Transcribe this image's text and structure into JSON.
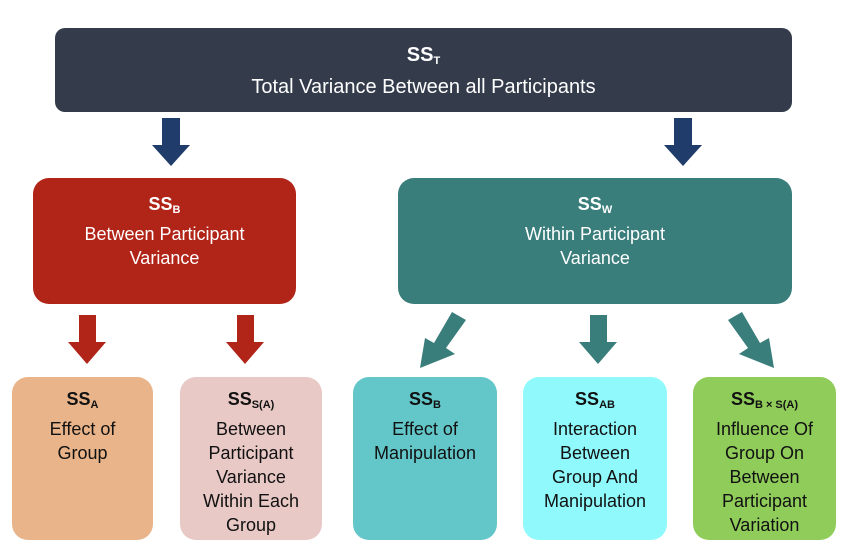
{
  "top": {
    "ss": "SS",
    "sub": "T",
    "label": "Total Variance Between all Participants",
    "color": "#343c4c"
  },
  "between": {
    "ss": "SS",
    "sub": "B",
    "lines": [
      "Between Participant",
      "Variance"
    ],
    "color": "#b12418"
  },
  "within": {
    "ss": "SS",
    "sub": "W",
    "lines": [
      "Within Participant",
      "Variance"
    ],
    "color": "#3a7e7c"
  },
  "leaves": [
    {
      "ss": "SS",
      "sub": "A",
      "lines": [
        "Effect of",
        "Group"
      ],
      "color": "#e9b48a"
    },
    {
      "ss": "SS",
      "sub": "S(A)",
      "lines": [
        "Between",
        "Participant",
        "Variance",
        "Within Each",
        "Group"
      ],
      "color": "#e8c9c6"
    },
    {
      "ss": "SS",
      "sub": "B",
      "lines": [
        "Effect of",
        "Manipulation"
      ],
      "color": "#63c7c9"
    },
    {
      "ss": "SS",
      "sub": "AB",
      "lines": [
        "Interaction",
        "Between",
        "Group And",
        "Manipulation"
      ],
      "color": "#8ff9fc"
    },
    {
      "ss": "SS",
      "sub": "B × S(A)",
      "lines": [
        "Influence Of",
        "Group On",
        "Between",
        "Participant",
        "Variation"
      ],
      "color": "#8fcc5a"
    }
  ]
}
